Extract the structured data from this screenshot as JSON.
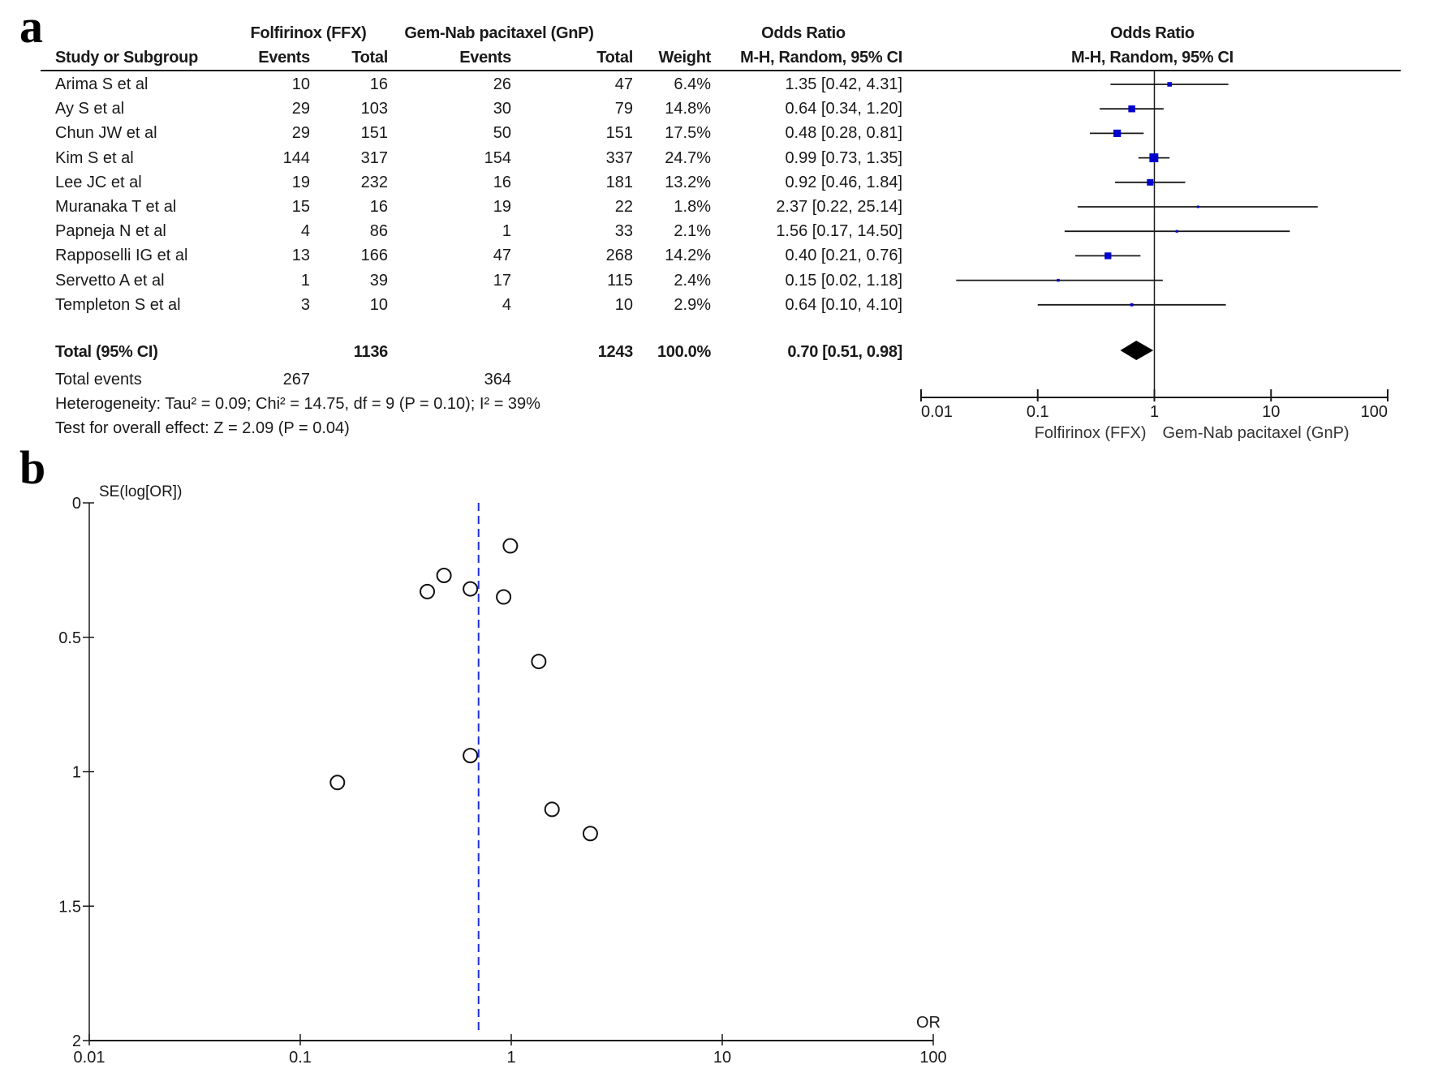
{
  "panels": {
    "a": "a",
    "b": "b"
  },
  "forest": {
    "headers": {
      "group1": "Folfirinox (FFX)",
      "group2": "Gem-Nab pacitaxel (GnP)",
      "or_title": "Odds Ratio",
      "study": "Study or Subgroup",
      "events1": "Events",
      "total1": "Total",
      "events2": "Events",
      "total2": "Total",
      "weight": "Weight",
      "method": "M-H, Random, 95% CI",
      "plot_title": "Odds Ratio",
      "plot_method": "M-H, Random, 95% CI"
    },
    "rows": [
      {
        "study": "Arima S et al",
        "e1": "10",
        "t1": "16",
        "e2": "26",
        "t2": "47",
        "weight": "6.4%",
        "ci": "1.35 [0.42, 4.31]"
      },
      {
        "study": "Ay S et al",
        "e1": "29",
        "t1": "103",
        "e2": "30",
        "t2": "79",
        "weight": "14.8%",
        "ci": "0.64 [0.34, 1.20]"
      },
      {
        "study": "Chun JW et al",
        "e1": "29",
        "t1": "151",
        "e2": "50",
        "t2": "151",
        "weight": "17.5%",
        "ci": "0.48 [0.28, 0.81]"
      },
      {
        "study": "Kim S et al",
        "e1": "144",
        "t1": "317",
        "e2": "154",
        "t2": "337",
        "weight": "24.7%",
        "ci": "0.99 [0.73, 1.35]"
      },
      {
        "study": "Lee JC et al",
        "e1": "19",
        "t1": "232",
        "e2": "16",
        "t2": "181",
        "weight": "13.2%",
        "ci": "0.92 [0.46, 1.84]"
      },
      {
        "study": "Muranaka T et al",
        "e1": "15",
        "t1": "16",
        "e2": "19",
        "t2": "22",
        "weight": "1.8%",
        "ci": "2.37 [0.22, 25.14]"
      },
      {
        "study": "Papneja N et al",
        "e1": "4",
        "t1": "86",
        "e2": "1",
        "t2": "33",
        "weight": "2.1%",
        "ci": "1.56 [0.17, 14.50]"
      },
      {
        "study": "Rapposelli IG et al",
        "e1": "13",
        "t1": "166",
        "e2": "47",
        "t2": "268",
        "weight": "14.2%",
        "ci": "0.40 [0.21, 0.76]"
      },
      {
        "study": "Servetto A et al",
        "e1": "1",
        "t1": "39",
        "e2": "17",
        "t2": "115",
        "weight": "2.4%",
        "ci": "0.15 [0.02, 1.18]"
      },
      {
        "study": "Templeton S et al",
        "e1": "3",
        "t1": "10",
        "e2": "4",
        "t2": "10",
        "weight": "2.9%",
        "ci": "0.64 [0.10, 4.10]"
      }
    ],
    "total": {
      "label": "Total (95% CI)",
      "t1": "1136",
      "t2": "1243",
      "weight": "100.0%",
      "ci": "0.70 [0.51, 0.98]"
    },
    "total_events": {
      "label": "Total events",
      "e1": "267",
      "e2": "364"
    },
    "heterogeneity": "Heterogeneity: Tau² = 0.09; Chi² = 14.75, df = 9 (P = 0.10); I² = 39%",
    "overall_effect": "Test for overall effect: Z = 2.09 (P = 0.04)",
    "axis_ticks": [
      "0.01",
      "0.1",
      "1",
      "10",
      "100"
    ],
    "favours_left": "Folfirinox (FFX)",
    "favours_right": "Gem-Nab pacitaxel (GnP)"
  },
  "colors": {
    "marker": "#0000cc",
    "funnel_line": "#1f2fd6",
    "ink": "#1a1a1a"
  },
  "chart_data": [
    {
      "type": "forest",
      "title": "Odds Ratio M-H, Random, 95% CI",
      "xscale": "log",
      "xlim": [
        0.01,
        100
      ],
      "xticks": [
        0.01,
        0.1,
        1,
        10,
        100
      ],
      "xlabel_left": "Folfirinox (FFX)",
      "xlabel_right": "Gem-Nab pacitaxel (GnP)",
      "reference_line": 1,
      "studies": [
        {
          "name": "Arima S et al",
          "or": 1.35,
          "lower": 0.42,
          "upper": 4.31,
          "weight": 6.4
        },
        {
          "name": "Ay S et al",
          "or": 0.64,
          "lower": 0.34,
          "upper": 1.2,
          "weight": 14.8
        },
        {
          "name": "Chun JW et al",
          "or": 0.48,
          "lower": 0.28,
          "upper": 0.81,
          "weight": 17.5
        },
        {
          "name": "Kim S et al",
          "or": 0.99,
          "lower": 0.73,
          "upper": 1.35,
          "weight": 24.7
        },
        {
          "name": "Lee JC et al",
          "or": 0.92,
          "lower": 0.46,
          "upper": 1.84,
          "weight": 13.2
        },
        {
          "name": "Muranaka T et al",
          "or": 2.37,
          "lower": 0.22,
          "upper": 25.14,
          "weight": 1.8
        },
        {
          "name": "Papneja N et al",
          "or": 1.56,
          "lower": 0.17,
          "upper": 14.5,
          "weight": 2.1
        },
        {
          "name": "Rapposelli IG et al",
          "or": 0.4,
          "lower": 0.21,
          "upper": 0.76,
          "weight": 14.2
        },
        {
          "name": "Servetto A et al",
          "or": 0.15,
          "lower": 0.02,
          "upper": 1.18,
          "weight": 2.4
        },
        {
          "name": "Templeton S et al",
          "or": 0.64,
          "lower": 0.1,
          "upper": 4.1,
          "weight": 2.9
        }
      ],
      "pooled": {
        "or": 0.7,
        "lower": 0.51,
        "upper": 0.98
      }
    },
    {
      "type": "scatter",
      "title": "Funnel plot",
      "xlabel": "OR",
      "ylabel": "SE(log[OR])",
      "xscale": "log",
      "xlim": [
        0.01,
        100
      ],
      "xticks": [
        "0.01",
        "0.1",
        "1",
        "10",
        "100"
      ],
      "ylim": [
        0,
        2
      ],
      "yticks": [
        "0",
        "0.5",
        "1",
        "1.5",
        "2"
      ],
      "y_inverted": true,
      "pooled_line": 0.7,
      "points": [
        {
          "x": 1.35,
          "y": 0.59
        },
        {
          "x": 0.64,
          "y": 0.32
        },
        {
          "x": 0.48,
          "y": 0.27
        },
        {
          "x": 0.99,
          "y": 0.16
        },
        {
          "x": 0.92,
          "y": 0.35
        },
        {
          "x": 2.37,
          "y": 1.23
        },
        {
          "x": 1.56,
          "y": 1.14
        },
        {
          "x": 0.4,
          "y": 0.33
        },
        {
          "x": 0.15,
          "y": 1.04
        },
        {
          "x": 0.64,
          "y": 0.94
        }
      ]
    }
  ]
}
